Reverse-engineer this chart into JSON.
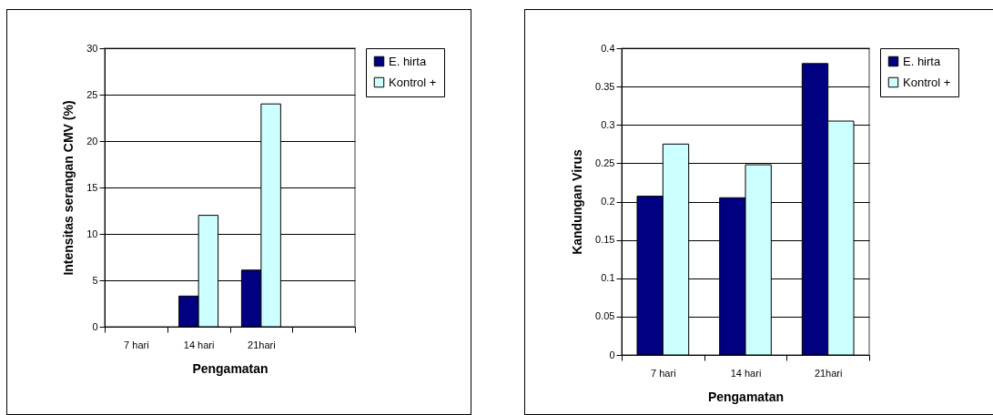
{
  "chart_data": [
    {
      "type": "bar",
      "xlabel": "Pengamatan",
      "ylabel": "Intensitas serangan CMV (%)",
      "categories": [
        "7 hari",
        "14 hari",
        "21hari",
        null
      ],
      "series": [
        {
          "name": "E. hirta",
          "color": "#000080",
          "values": [
            null,
            3.3,
            6.1,
            null
          ]
        },
        {
          "name": "Kontrol +",
          "color": "#ccffff",
          "values": [
            null,
            12,
            24,
            null
          ]
        }
      ],
      "ylim": [
        0,
        30
      ],
      "yticks": [
        0,
        5,
        10,
        15,
        20,
        25,
        30
      ],
      "grid": "y",
      "legend": "right"
    },
    {
      "type": "bar",
      "xlabel": "Pengamatan",
      "ylabel": "Kandungan Virus",
      "categories": [
        "7 hari",
        "14 hari",
        "21hari"
      ],
      "series": [
        {
          "name": "E. hirta",
          "color": "#000080",
          "values": [
            0.207,
            0.205,
            0.38
          ]
        },
        {
          "name": "Kontrol +",
          "color": "#ccffff",
          "values": [
            0.275,
            0.248,
            0.305
          ]
        }
      ],
      "ylim": [
        0,
        0.4
      ],
      "yticks": [
        0,
        0.05,
        0.1,
        0.15,
        0.2,
        0.25,
        0.3,
        0.35,
        0.4
      ],
      "grid": "y",
      "legend": "right"
    }
  ]
}
